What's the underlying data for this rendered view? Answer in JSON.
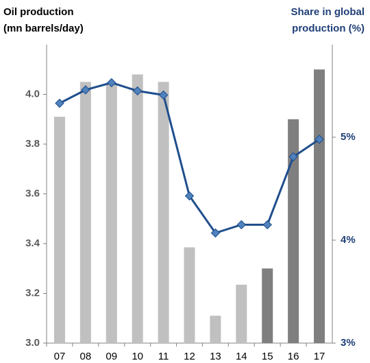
{
  "chart_data": {
    "type": "bar_line",
    "y_label": [
      "Oil production",
      "(mn barrels/day)"
    ],
    "y2_label": [
      "Share in global",
      "production (%)"
    ],
    "categories": [
      "07",
      "08",
      "09",
      "10",
      "11",
      "12",
      "13",
      "14",
      "15",
      "16",
      "17"
    ],
    "series": [
      {
        "type": "bar",
        "values": [
          3.91,
          4.05,
          4.04,
          4.08,
          4.05,
          3.385,
          3.11,
          3.235,
          3.3,
          3.9,
          4.1
        ],
        "colors": [
          "#c0c0c0",
          "#c0c0c0",
          "#c0c0c0",
          "#c0c0c0",
          "#c0c0c0",
          "#c0c0c0",
          "#c0c0c0",
          "#c0c0c0",
          "#7f7f7f",
          "#7f7f7f",
          "#7f7f7f"
        ]
      },
      {
        "type": "line",
        "axis": "y2",
        "color": "#1f4e8c",
        "marker_color": "#4f81bd",
        "values": [
          5.33,
          5.46,
          5.53,
          5.45,
          5.41,
          4.43,
          4.07,
          4.15,
          4.15,
          4.81,
          4.98
        ]
      }
    ],
    "ylim": [
      3.0,
      4.2
    ],
    "yticks": [
      {
        "value": 3.0,
        "label": "3.0"
      },
      3.2,
      3.4,
      3.6,
      3.8,
      {
        "value": 4.0,
        "label": "4.0"
      }
    ],
    "y2lim": [
      3,
      5.9
    ],
    "y2ticks": [
      {
        "value": 3,
        "label": "3%"
      },
      {
        "value": 4,
        "label": "4%"
      },
      {
        "value": 5,
        "label": "5%"
      }
    ]
  }
}
